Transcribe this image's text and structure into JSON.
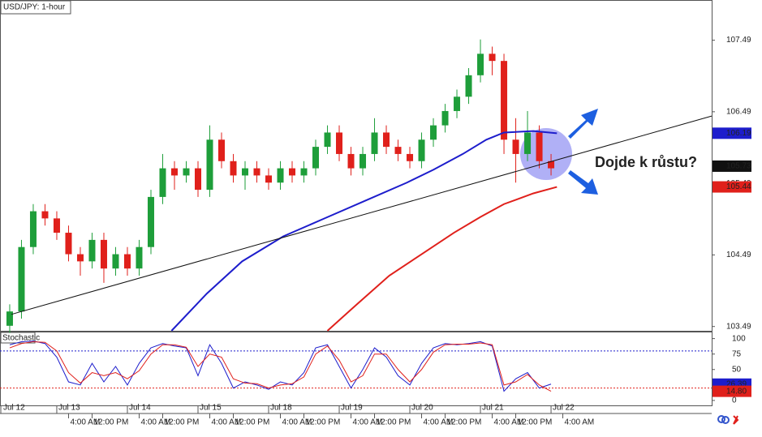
{
  "chart_data": [
    {
      "type": "candlestick",
      "title": "USD/JPY: 1-hour",
      "x": [
        8,
        12,
        16,
        20,
        24,
        28,
        32,
        36,
        40,
        44,
        48,
        52,
        56,
        60,
        64,
        68,
        72,
        76,
        80,
        84,
        88,
        92,
        96,
        100,
        104,
        108,
        112,
        116,
        120,
        124,
        128,
        132,
        136,
        140,
        144,
        148,
        152,
        156,
        160,
        164,
        168,
        172,
        176,
        180,
        184,
        188,
        192
      ],
      "open": [
        103.5,
        103.7,
        104.6,
        105.1,
        105.0,
        104.8,
        104.5,
        104.4,
        104.7,
        104.3,
        104.5,
        104.3,
        104.6,
        105.3,
        105.7,
        105.6,
        105.7,
        105.4,
        106.1,
        105.8,
        105.6,
        105.7,
        105.6,
        105.5,
        105.7,
        105.6,
        105.7,
        106.0,
        106.2,
        105.9,
        105.7,
        105.9,
        106.2,
        106.0,
        105.9,
        105.8,
        106.1,
        106.3,
        106.5,
        106.7,
        107.0,
        107.3,
        107.2,
        106.1,
        105.9,
        106.2,
        105.8
      ],
      "high": [
        103.8,
        104.7,
        105.2,
        105.2,
        105.1,
        104.9,
        104.6,
        104.8,
        104.8,
        104.6,
        104.6,
        104.7,
        105.4,
        105.9,
        105.8,
        105.8,
        105.8,
        106.3,
        106.2,
        105.9,
        105.8,
        105.8,
        105.7,
        105.8,
        105.8,
        105.8,
        106.1,
        106.3,
        106.3,
        106.0,
        106.0,
        106.4,
        106.3,
        106.1,
        106.0,
        106.2,
        106.4,
        106.6,
        106.8,
        107.1,
        107.5,
        107.4,
        107.3,
        106.4,
        106.5,
        106.3,
        105.9
      ],
      "low": [
        103.4,
        103.6,
        104.5,
        104.9,
        104.7,
        104.4,
        104.2,
        104.3,
        104.1,
        104.2,
        104.2,
        104.2,
        104.5,
        105.2,
        105.4,
        105.5,
        105.3,
        105.3,
        105.7,
        105.5,
        105.4,
        105.5,
        105.4,
        105.4,
        105.5,
        105.5,
        105.6,
        105.9,
        105.8,
        105.6,
        105.6,
        105.8,
        105.9,
        105.8,
        105.7,
        105.7,
        106.0,
        106.2,
        106.4,
        106.6,
        106.9,
        107.0,
        105.9,
        105.5,
        105.8,
        105.7,
        105.6
      ],
      "close": [
        103.7,
        104.6,
        105.1,
        105.0,
        104.8,
        104.5,
        104.4,
        104.7,
        104.3,
        104.5,
        104.3,
        104.6,
        105.3,
        105.7,
        105.6,
        105.7,
        105.4,
        106.1,
        105.8,
        105.6,
        105.7,
        105.6,
        105.5,
        105.7,
        105.6,
        105.7,
        106.0,
        106.2,
        105.9,
        105.7,
        105.9,
        106.2,
        106.0,
        105.9,
        105.8,
        106.1,
        106.3,
        106.5,
        106.7,
        107.0,
        107.3,
        107.2,
        106.1,
        105.9,
        106.2,
        105.8,
        105.7
      ],
      "up_color": "#1e9e3a",
      "down_color": "#e0201b",
      "lines": [
        {
          "color": "#1d1dcc",
          "x": [
            63,
            75,
            87,
            101,
            115,
            129,
            143,
            152,
            162,
            170,
            176,
            186,
            194
          ],
          "values": [
            103.43,
            103.95,
            104.4,
            104.75,
            105.0,
            105.25,
            105.5,
            105.68,
            105.9,
            106.1,
            106.2,
            106.22,
            106.19
          ]
        },
        {
          "color": "#e0201b",
          "x": [
            116,
            126,
            137,
            148,
            159,
            168,
            176,
            186,
            194
          ],
          "values": [
            103.43,
            103.8,
            104.2,
            104.5,
            104.8,
            105.02,
            105.2,
            105.35,
            105.44
          ]
        },
        {
          "color": "#111111",
          "x": [
            8.6,
            246.6
          ],
          "values": [
            103.66,
            106.43
          ]
        }
      ],
      "price_labels": [
        {
          "value": 106.19,
          "label": "106.19",
          "color": "#1d1dcc"
        },
        {
          "value": 105.73,
          "label": "105.73",
          "color": "#111111"
        },
        {
          "value": 105.44,
          "label": "105.44",
          "color": "#e0201b"
        }
      ],
      "annotation": "Dojde k růstu?",
      "xlim": [
        4.7,
        246.6
      ],
      "ylim": [
        103.43,
        108.04
      ],
      "yticks": [
        103.49,
        104.49,
        105.49,
        106.49,
        107.49
      ],
      "xticks": [
        {
          "value": 0,
          "label": "Jul 12"
        },
        {
          "value": 24,
          "label": "Jul 13"
        },
        {
          "value": 48,
          "label": "Jul 14"
        },
        {
          "value": 72,
          "label": "Jul 15"
        },
        {
          "value": 96,
          "label": "Jul 18"
        },
        {
          "value": 120,
          "label": "Jul 19"
        },
        {
          "value": 144,
          "label": "Jul 20"
        },
        {
          "value": 168,
          "label": "Jul 21"
        },
        {
          "value": 192,
          "label": "Jul 22"
        }
      ],
      "time_ticks": [
        {
          "value": 28,
          "label": "4:00 AM"
        },
        {
          "value": 36,
          "label": "12:00 PM"
        },
        {
          "value": 52,
          "label": "4:00 AM"
        },
        {
          "value": 60,
          "label": "12:00 PM"
        },
        {
          "value": 76,
          "label": "4:00 AM"
        },
        {
          "value": 84,
          "label": "12:00 PM"
        },
        {
          "value": 100,
          "label": "4:00 AM"
        },
        {
          "value": 108,
          "label": "12:00 PM"
        },
        {
          "value": 124,
          "label": "4:00 AM"
        },
        {
          "value": 132,
          "label": "12:00 PM"
        },
        {
          "value": 148,
          "label": "4:00 AM"
        },
        {
          "value": 156,
          "label": "12:00 PM"
        },
        {
          "value": 172,
          "label": "4:00 AM"
        },
        {
          "value": 180,
          "label": "12:00 PM"
        },
        {
          "value": 196,
          "label": "4:00 AM"
        }
      ]
    },
    {
      "type": "line",
      "title": "Stochastic",
      "x": [
        8,
        12,
        16,
        20,
        24,
        28,
        32,
        36,
        40,
        44,
        48,
        52,
        56,
        60,
        64,
        68,
        72,
        76,
        80,
        84,
        88,
        92,
        96,
        100,
        104,
        108,
        112,
        116,
        120,
        124,
        128,
        132,
        136,
        140,
        144,
        148,
        152,
        156,
        160,
        164,
        168,
        172,
        176,
        180,
        184,
        188,
        192
      ],
      "series": [
        {
          "color": "#1d1dcc",
          "values": [
            90,
            95,
            96,
            92,
            70,
            30,
            25,
            60,
            30,
            55,
            25,
            60,
            85,
            92,
            88,
            85,
            40,
            90,
            60,
            20,
            30,
            25,
            18,
            30,
            25,
            45,
            85,
            90,
            55,
            20,
            50,
            85,
            70,
            40,
            25,
            60,
            85,
            92,
            90,
            92,
            95,
            88,
            15,
            35,
            45,
            20,
            26.39
          ]
        },
        {
          "color": "#e0201b",
          "values": [
            85,
            92,
            95,
            94,
            80,
            45,
            28,
            45,
            40,
            45,
            35,
            48,
            75,
            90,
            90,
            86,
            55,
            75,
            70,
            35,
            28,
            27,
            20,
            25,
            27,
            38,
            75,
            88,
            65,
            30,
            40,
            75,
            75,
            50,
            30,
            50,
            78,
            90,
            91,
            91,
            93,
            90,
            25,
            30,
            42,
            25,
            14.8
          ]
        }
      ],
      "levels": [
        80,
        20
      ],
      "price_labels": [
        {
          "value": 26.39,
          "label": "26.39",
          "color": "#1d1dcc"
        },
        {
          "value": 14.8,
          "label": "14.80",
          "color": "#e0201b"
        }
      ],
      "xlim": [
        4.7,
        246.6
      ],
      "ylim": [
        -8,
        110
      ],
      "yticks": [
        0,
        25,
        50,
        75,
        100
      ]
    }
  ]
}
